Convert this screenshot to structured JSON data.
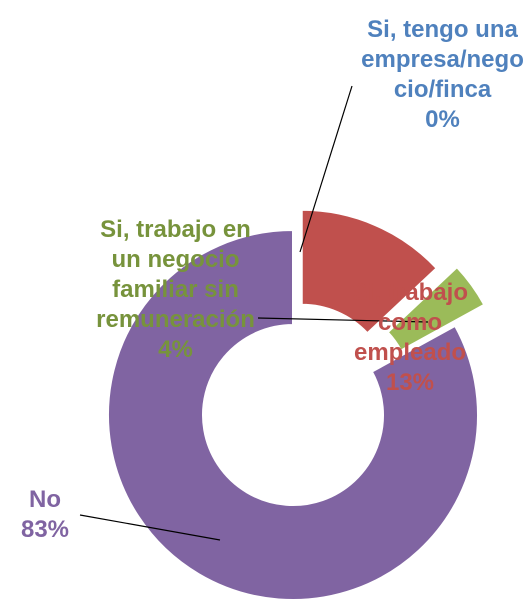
{
  "chart_data": {
    "type": "doughnut",
    "categories": [
      "Si, tengo una empresa/negocio/finca",
      "Si, trabajo como empleado",
      "Si, trabajo en un negocio familiar sin remuneración",
      "No"
    ],
    "values": [
      0,
      13,
      4,
      83
    ],
    "value_labels": [
      "0%",
      "13%",
      "4%",
      "83%"
    ],
    "colors": [
      "#4f81bd",
      "#c0504d",
      "#9bbb59",
      "#8064a2"
    ]
  }
}
